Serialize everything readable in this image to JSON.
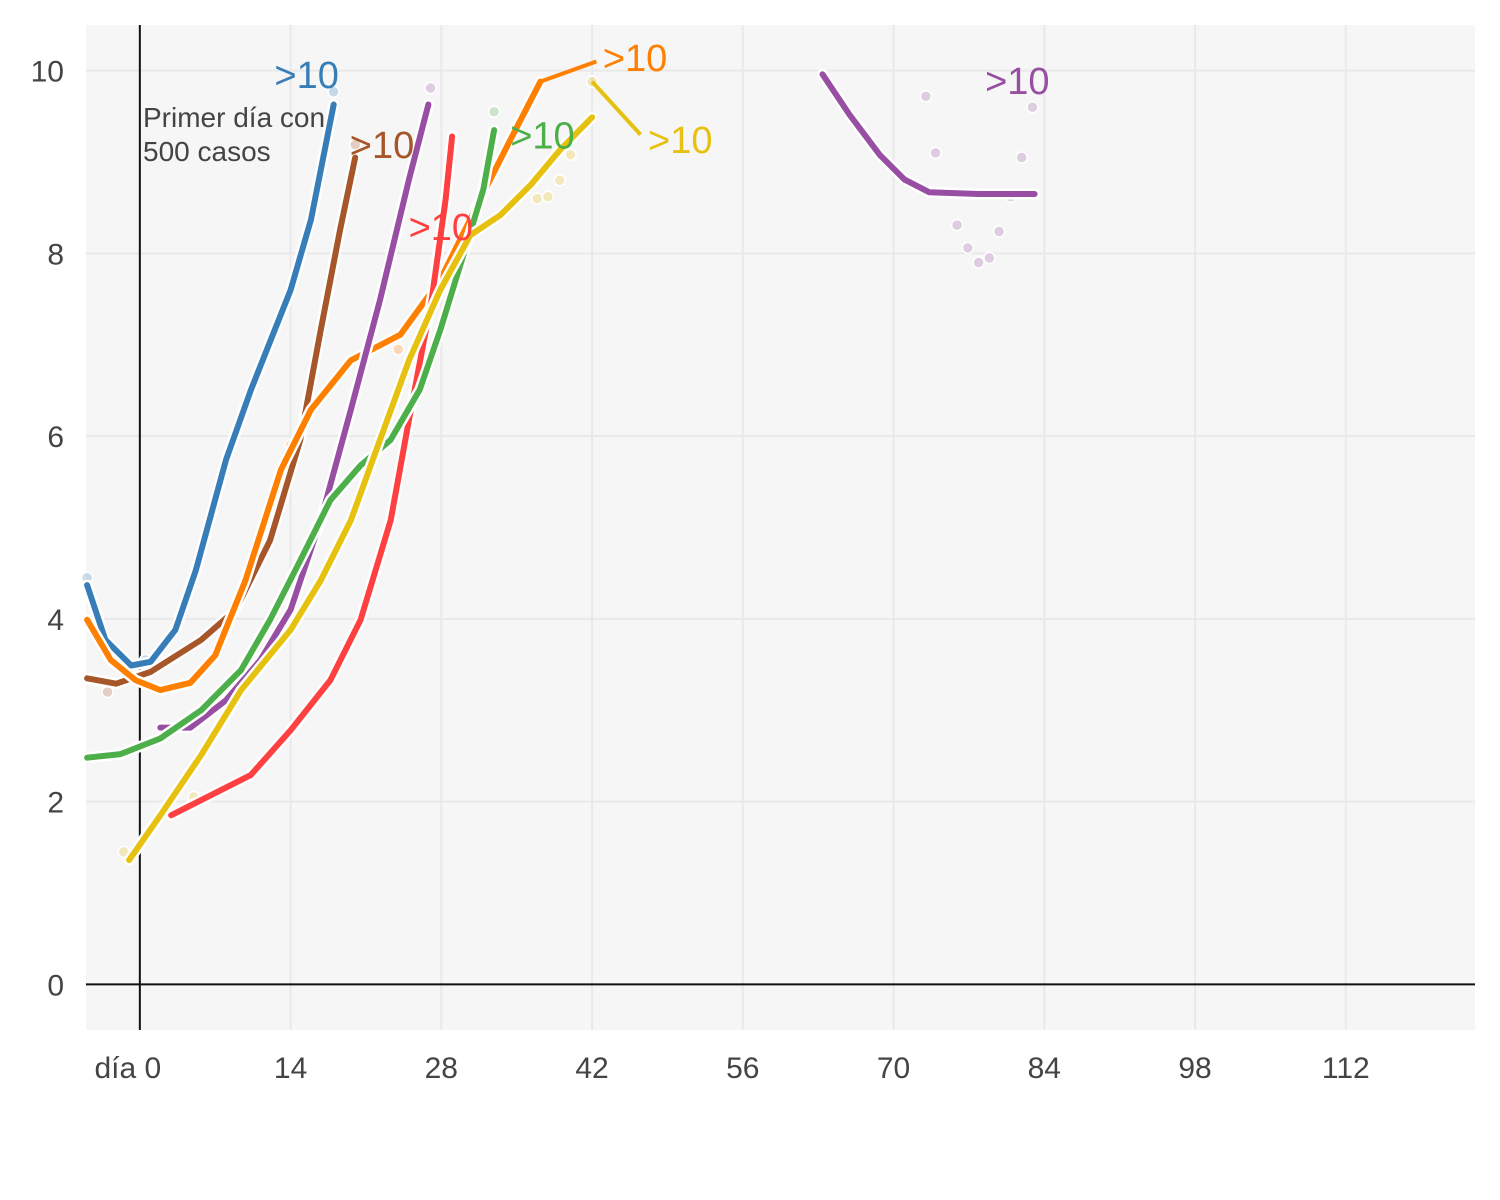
{
  "chart_data": {
    "type": "line",
    "title": "",
    "xlabel": "",
    "ylabel": "",
    "xlim": [
      -5,
      124
    ],
    "ylim": [
      -0.5,
      10.5
    ],
    "grid": true,
    "x_ticks": [
      0,
      14,
      28,
      42,
      56,
      70,
      84,
      98,
      112
    ],
    "x_tick_labels": [
      "día 0",
      "14",
      "28",
      "42",
      "56",
      "70",
      "84",
      "98",
      "112"
    ],
    "y_ticks": [
      0,
      2,
      4,
      6,
      8,
      10
    ],
    "y_tick_labels": [
      "0",
      "2",
      "4",
      "6",
      "8",
      "10"
    ],
    "annotation": {
      "lines": [
        "Primer día con",
        "500 casos"
      ],
      "x": 0
    },
    "series": [
      {
        "name": "blue",
        "color": "#377eb8",
        "end_label": ">10",
        "label_at": [
          12.5,
          9.9
        ],
        "x": [
          -4.9,
          -3.2,
          -0.8,
          1,
          3.3,
          5.2,
          8,
          10.3,
          14,
          15.9,
          18
        ],
        "y": [
          4.37,
          3.77,
          3.49,
          3.53,
          3.88,
          4.53,
          5.74,
          6.5,
          7.6,
          8.37,
          9.63
        ],
        "points": [
          [
            18,
            9.77
          ],
          [
            -4.9,
            4.45
          ],
          [
            0.5,
            3.55
          ]
        ]
      },
      {
        "name": "brown",
        "color": "#a65628",
        "end_label": ">10",
        "label_at": [
          19.5,
          9.2
        ],
        "x": [
          -4.9,
          -2.2,
          1,
          5.7,
          8.9,
          12.1,
          14.9,
          16.8,
          18.6,
          20
        ],
        "y": [
          3.35,
          3.29,
          3.42,
          3.77,
          4.1,
          4.86,
          5.96,
          7.16,
          8.26,
          9.05
        ],
        "points": [
          [
            20,
            9.19
          ],
          [
            -3,
            3.2
          ]
        ]
      },
      {
        "name": "orange",
        "color": "#ff7f00",
        "end_label": ">10",
        "label_at": [
          43,
          10.15
        ],
        "leader": [
          [
            37.2,
            9.88
          ],
          [
            42.4,
            10.1
          ]
        ],
        "x": [
          -4.9,
          -2.7,
          -0.4,
          1.9,
          4.7,
          7,
          9.8,
          13.1,
          15.9,
          19.6,
          24.2,
          27.9,
          31.6,
          34.4,
          37.2
        ],
        "y": [
          3.99,
          3.55,
          3.33,
          3.22,
          3.3,
          3.6,
          4.42,
          5.63,
          6.29,
          6.83,
          7.11,
          7.71,
          8.59,
          9.24,
          9.88
        ],
        "points": [
          [
            14,
            5.9
          ],
          [
            24,
            6.95
          ],
          [
            5.5,
            3.75
          ]
        ]
      },
      {
        "name": "purple",
        "color": "#984ea3",
        "end_label": ">10",
        "label_at": [
          24.5,
          8.6
        ],
        "hide_label": true,
        "x": [
          1.9,
          4.7,
          8,
          11.2,
          14,
          16.8,
          19.6,
          22.3,
          25,
          26.8
        ],
        "y": [
          2.81,
          2.81,
          3.11,
          3.55,
          4.1,
          5.08,
          6.29,
          7.49,
          8.81,
          9.63
        ],
        "points": [
          [
            27,
            9.81
          ]
        ]
      },
      {
        "name": "red",
        "color": "#ff4040",
        "end_label": ">10",
        "label_at": [
          24.4,
          8.65
        ],
        "x": [
          2.9,
          6.6,
          10.3,
          14,
          17.7,
          20.5,
          23.3,
          25,
          27.1,
          28.4,
          29
        ],
        "y": [
          1.85,
          2.07,
          2.29,
          2.78,
          3.33,
          3.99,
          5.08,
          6.18,
          7.49,
          8.59,
          9.28
        ],
        "points": []
      },
      {
        "name": "green",
        "color": "#4daf4a",
        "end_label": ">10",
        "label_at": [
          34.4,
          9.3
        ],
        "x": [
          -4.9,
          -1.8,
          1.9,
          5.7,
          9.4,
          12.1,
          14.9,
          17.7,
          20.5,
          23.3,
          26,
          27.9,
          30.2,
          31.9,
          32.9
        ],
        "y": [
          2.48,
          2.52,
          2.69,
          3.0,
          3.44,
          3.99,
          4.64,
          5.3,
          5.68,
          5.96,
          6.51,
          7.16,
          8.04,
          8.7,
          9.35
        ],
        "points": [
          [
            32.9,
            9.55
          ]
        ]
      },
      {
        "name": "yellow",
        "color": "#e6c10f",
        "end_label": ">10",
        "label_at": [
          47.2,
          9.25
        ],
        "leader": [
          [
            42,
            9.88
          ],
          [
            46.5,
            9.3
          ]
        ],
        "x": [
          -1,
          1.9,
          5.7,
          9.4,
          14,
          16.8,
          19.6,
          22.3,
          25,
          27.9,
          30.7,
          33.5,
          36.3,
          39,
          42
        ],
        "y": [
          1.36,
          1.85,
          2.51,
          3.22,
          3.88,
          4.42,
          5.08,
          5.96,
          6.83,
          7.6,
          8.2,
          8.42,
          8.75,
          9.13,
          9.49
        ],
        "points": [
          [
            42,
            9.88
          ],
          [
            36.9,
            8.6
          ],
          [
            37.9,
            8.62
          ],
          [
            39,
            8.8
          ],
          [
            40,
            9.08
          ],
          [
            5,
            2.05
          ],
          [
            -1.5,
            1.45
          ]
        ]
      },
      {
        "name": "purple-2",
        "color": "#984ea3",
        "end_label": ">10",
        "label_at": [
          78.5,
          9.9
        ],
        "x": [
          63.4,
          65.9,
          68.7,
          71,
          73.3,
          77.9,
          83.1
        ],
        "y": [
          9.96,
          9.52,
          9.08,
          8.81,
          8.67,
          8.65,
          8.65
        ],
        "points": [
          [
            73,
            9.72
          ],
          [
            73.9,
            9.1
          ],
          [
            75.9,
            8.31
          ],
          [
            76.9,
            8.06
          ],
          [
            77.9,
            7.9
          ],
          [
            78.9,
            7.95
          ],
          [
            79.8,
            8.24
          ],
          [
            80.9,
            8.62
          ],
          [
            81.9,
            9.05
          ],
          [
            82.9,
            9.6
          ]
        ]
      }
    ]
  }
}
